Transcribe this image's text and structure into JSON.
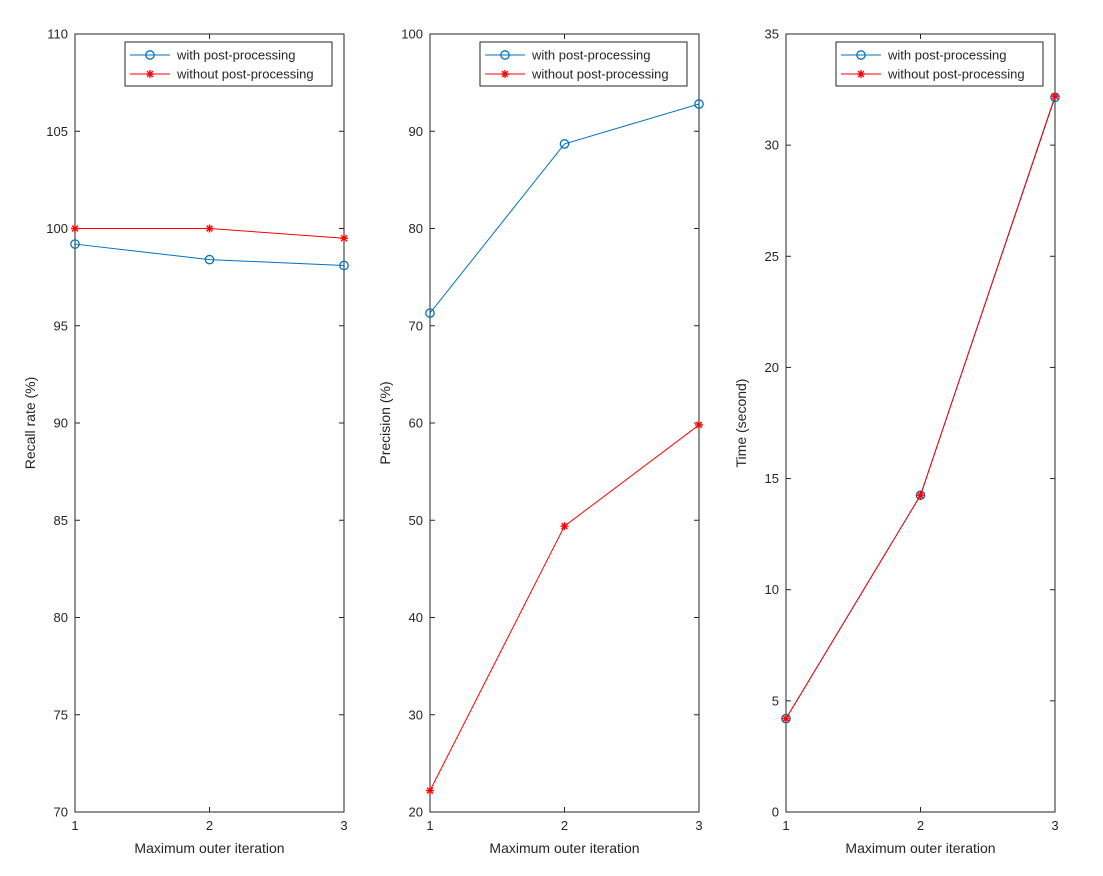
{
  "legend": {
    "with_label": "with post-processing",
    "without_label": "without post-processing"
  },
  "colors": {
    "with": "#0072BD",
    "without": "#FF0000",
    "axis": "#262626",
    "background": "#ffffff"
  },
  "markers": {
    "with": "circle",
    "without": "asterisk"
  },
  "chart_data": [
    {
      "type": "line",
      "title": "",
      "xlabel": "Maximum outer iteration",
      "ylabel": "Recall rate (%)",
      "x": [
        1,
        2,
        3
      ],
      "xticks": [
        "1",
        "2",
        "3"
      ],
      "xlim": [
        1,
        3
      ],
      "ylim": [
        70,
        110
      ],
      "yticks": [
        "70",
        "75",
        "80",
        "85",
        "90",
        "95",
        "100",
        "105",
        "110"
      ],
      "legend_position": "top-right",
      "grid": false,
      "series": [
        {
          "name": "with post-processing",
          "values": [
            99.2,
            98.4,
            98.1
          ]
        },
        {
          "name": "without post-processing",
          "values": [
            100,
            100,
            99.5
          ]
        }
      ]
    },
    {
      "type": "line",
      "title": "",
      "xlabel": "Maximum outer iteration",
      "ylabel": "Precision  (%)",
      "x": [
        1,
        2,
        3
      ],
      "xticks": [
        "1",
        "2",
        "3"
      ],
      "xlim": [
        1,
        3
      ],
      "ylim": [
        20,
        100
      ],
      "yticks": [
        "20",
        "30",
        "40",
        "50",
        "60",
        "70",
        "80",
        "90",
        "100"
      ],
      "legend_position": "top-right",
      "grid": false,
      "series": [
        {
          "name": "with post-processing",
          "values": [
            71.3,
            88.7,
            92.8
          ]
        },
        {
          "name": "without post-processing",
          "values": [
            22.2,
            49.4,
            59.8
          ]
        }
      ]
    },
    {
      "type": "line",
      "title": "",
      "xlabel": "Maximum outer iteration",
      "ylabel": "Time (second)",
      "x": [
        1,
        2,
        3
      ],
      "xticks": [
        "1",
        "2",
        "3"
      ],
      "xlim": [
        1,
        3
      ],
      "ylim": [
        0,
        35
      ],
      "yticks": [
        "0",
        "5",
        "10",
        "15",
        "20",
        "25",
        "30",
        "35"
      ],
      "legend_position": "top-right",
      "grid": false,
      "series": [
        {
          "name": "with post-processing",
          "values": [
            4.2,
            14.25,
            32.15
          ]
        },
        {
          "name": "without post-processing",
          "values": [
            4.2,
            14.25,
            32.2
          ]
        }
      ]
    }
  ]
}
